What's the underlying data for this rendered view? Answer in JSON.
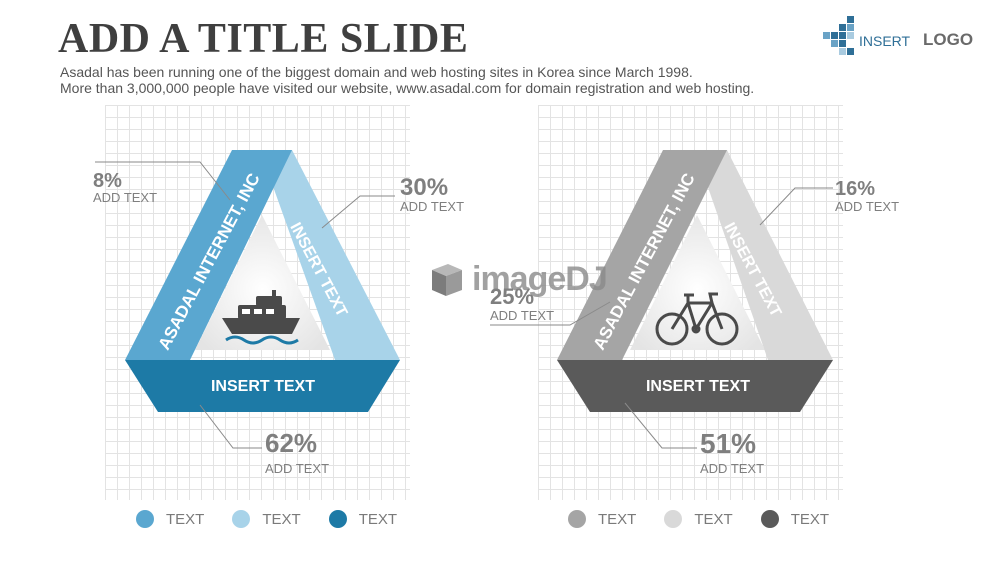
{
  "header": {
    "title": "ADD A TITLE SLIDE",
    "subtitle_line1": "Asadal has been running one of the biggest domain and web hosting sites in Korea since March 1998.",
    "subtitle_line2": "More than 3,000,000 people have visited our website,  www.asadal.com for domain registration and web hosting."
  },
  "logo": {
    "insert": "INSERT",
    "word": "LOGO"
  },
  "watermark": "imageDJ",
  "diagrams": [
    {
      "icon": "ship-icon",
      "colors": {
        "left": "#5aa7d0",
        "right": "#a8d3e9",
        "bottom": "#1d7aa6"
      },
      "left_label": "ASADAL INTERNET, INC",
      "right_label": "INSERT TEXT",
      "bottom_label": "INSERT TEXT",
      "callouts": [
        {
          "value": "8%",
          "text": "ADD TEXT"
        },
        {
          "value": "30%",
          "text": "ADD TEXT"
        },
        {
          "value": "62%",
          "text": "ADD TEXT"
        }
      ],
      "legend": [
        {
          "label": "TEXT",
          "color": "#5aa7d0"
        },
        {
          "label": "TEXT",
          "color": "#a8d3e9"
        },
        {
          "label": "TEXT",
          "color": "#1d7aa6"
        }
      ]
    },
    {
      "icon": "bicycle-icon",
      "colors": {
        "left": "#a5a5a5",
        "right": "#d9d9d9",
        "bottom": "#5a5a5a"
      },
      "left_label": "ASADAL INTERNET, INC",
      "right_label": "INSERT TEXT",
      "bottom_label": "INSERT TEXT",
      "callouts": [
        {
          "value": "25%",
          "text": "ADD TEXT"
        },
        {
          "value": "16%",
          "text": "ADD TEXT"
        },
        {
          "value": "51%",
          "text": "ADD TEXT"
        }
      ],
      "legend": [
        {
          "label": "TEXT",
          "color": "#a5a5a5"
        },
        {
          "label": "TEXT",
          "color": "#d9d9d9"
        },
        {
          "label": "TEXT",
          "color": "#5a5a5a"
        }
      ]
    }
  ]
}
